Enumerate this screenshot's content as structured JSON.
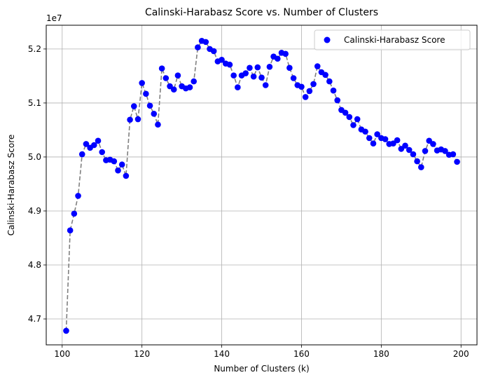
{
  "chart_data": {
    "type": "scatter",
    "title": "Calinski-Harabasz Score vs. Number of Clusters",
    "xlabel": "Number of Clusters (k)",
    "ylabel": "Calinski-Harabasz Score",
    "y_offset_label": "1e7",
    "xlim": [
      96,
      204
    ],
    "ylim": [
      4.652,
      5.244
    ],
    "xticks": [
      100,
      120,
      140,
      160,
      180,
      200
    ],
    "xtick_labels": [
      "100",
      "120",
      "140",
      "160",
      "180",
      "200"
    ],
    "yticks": [
      4.7,
      4.8,
      4.9,
      5.0,
      5.1,
      5.2
    ],
    "ytick_labels": [
      "4.7",
      "4.8",
      "4.9",
      "5.0",
      "5.1",
      "5.2"
    ],
    "grid": true,
    "legend": "top-right",
    "series": [
      {
        "name": "Calinski-Harabasz Score",
        "marker_color": "#0000ff",
        "line_color": "#808080",
        "line_style": "dashed",
        "x": [
          101,
          102,
          103,
          104,
          105,
          106,
          107,
          108,
          109,
          110,
          111,
          112,
          113,
          114,
          115,
          116,
          117,
          118,
          119,
          120,
          121,
          122,
          123,
          124,
          125,
          126,
          127,
          128,
          129,
          130,
          131,
          132,
          133,
          134,
          135,
          136,
          137,
          138,
          139,
          140,
          141,
          142,
          143,
          144,
          145,
          146,
          147,
          148,
          149,
          150,
          151,
          152,
          153,
          154,
          155,
          156,
          157,
          158,
          159,
          160,
          161,
          162,
          163,
          164,
          165,
          166,
          167,
          168,
          169,
          170,
          171,
          172,
          173,
          174,
          175,
          176,
          177,
          178,
          179,
          180,
          181,
          182,
          183,
          184,
          185,
          186,
          187,
          188,
          189,
          190,
          191,
          192,
          193,
          194,
          195,
          196,
          197,
          198,
          199
        ],
        "values": [
          4.678,
          4.864,
          4.895,
          4.928,
          5.005,
          5.024,
          5.017,
          5.022,
          5.03,
          5.009,
          4.994,
          4.995,
          4.992,
          4.975,
          4.986,
          4.965,
          5.069,
          5.094,
          5.07,
          5.137,
          5.117,
          5.095,
          5.08,
          5.06,
          5.164,
          5.146,
          5.131,
          5.125,
          5.151,
          5.131,
          5.127,
          5.129,
          5.14,
          5.203,
          5.215,
          5.213,
          5.2,
          5.196,
          5.177,
          5.18,
          5.173,
          5.171,
          5.151,
          5.129,
          5.151,
          5.155,
          5.165,
          5.149,
          5.166,
          5.147,
          5.133,
          5.167,
          5.186,
          5.182,
          5.193,
          5.191,
          5.165,
          5.146,
          5.133,
          5.13,
          5.111,
          5.122,
          5.135,
          5.168,
          5.157,
          5.152,
          5.14,
          5.123,
          5.105,
          5.087,
          5.082,
          5.074,
          5.059,
          5.07,
          5.051,
          5.047,
          5.035,
          5.025,
          5.042,
          5.035,
          5.033,
          5.024,
          5.025,
          5.031,
          5.015,
          5.021,
          5.013,
          5.005,
          4.992,
          4.981,
          5.011,
          5.03,
          5.024,
          5.012,
          5.014,
          5.011,
          5.004,
          5.005,
          4.991
        ]
      }
    ]
  }
}
